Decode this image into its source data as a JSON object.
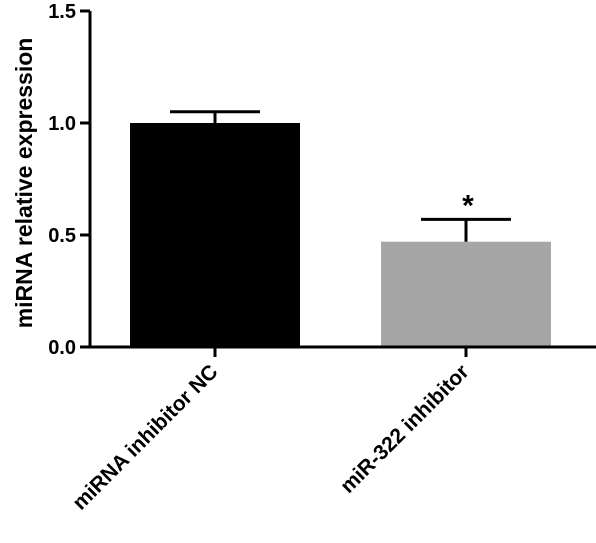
{
  "chart_data": {
    "type": "bar",
    "title": "",
    "xlabel": "",
    "ylabel": "miRNA relative expression",
    "ylim": [
      0,
      1.5
    ],
    "yticks": [
      0.0,
      0.5,
      1.0,
      1.5
    ],
    "ytick_labels": [
      "0.0",
      "0.5",
      "1.0",
      "1.5"
    ],
    "categories": [
      "miRNA inhibitor NC",
      "miR-322 inhibitor"
    ],
    "values": [
      1.0,
      0.47
    ],
    "errors": [
      0.05,
      0.1
    ],
    "colors": [
      "#000000",
      "#a6a6a6"
    ],
    "annotations": [
      "",
      "*"
    ],
    "grid": false,
    "legend": "none"
  }
}
